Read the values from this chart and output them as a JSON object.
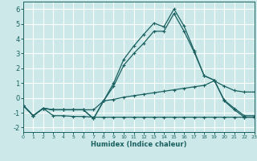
{
  "xlabel": "Humidex (Indice chaleur)",
  "xlim": [
    0,
    23
  ],
  "ylim": [
    -2.3,
    6.5
  ],
  "yticks": [
    -2,
    -1,
    0,
    1,
    2,
    3,
    4,
    5,
    6
  ],
  "xticks": [
    0,
    1,
    2,
    3,
    4,
    5,
    6,
    7,
    8,
    9,
    10,
    11,
    12,
    13,
    14,
    15,
    16,
    17,
    18,
    19,
    20,
    21,
    22,
    23
  ],
  "bg_color": "#cce8e8",
  "grid_color": "#ffffff",
  "line_color": "#1a6060",
  "line1_y": [
    -0.5,
    -1.2,
    -0.7,
    -0.8,
    -0.8,
    -0.8,
    -0.8,
    -1.4,
    -0.2,
    1.0,
    2.6,
    3.5,
    4.3,
    5.05,
    4.8,
    6.0,
    4.85,
    3.2,
    1.5,
    1.2,
    -0.2,
    -0.8,
    -1.3,
    -1.3
  ],
  "line2_y": [
    -0.5,
    -1.2,
    -0.7,
    -0.8,
    -0.8,
    -0.8,
    -0.8,
    -1.4,
    -0.2,
    0.8,
    2.2,
    3.0,
    3.7,
    4.5,
    4.5,
    5.7,
    4.5,
    3.1,
    1.5,
    1.2,
    -0.15,
    -0.7,
    -1.2,
    -1.2
  ],
  "line3_y": [
    -0.5,
    -1.2,
    -0.7,
    -0.8,
    -0.8,
    -0.8,
    -0.8,
    -0.8,
    -0.2,
    -0.1,
    0.05,
    0.15,
    0.25,
    0.35,
    0.45,
    0.55,
    0.65,
    0.75,
    0.85,
    1.15,
    0.8,
    0.5,
    0.4,
    0.4
  ],
  "line4_y": [
    -0.5,
    -1.2,
    -0.7,
    -1.2,
    -1.2,
    -1.25,
    -1.25,
    -1.3,
    -1.3,
    -1.3,
    -1.3,
    -1.3,
    -1.3,
    -1.3,
    -1.3,
    -1.3,
    -1.3,
    -1.3,
    -1.3,
    -1.3,
    -1.3,
    -1.3,
    -1.3,
    -1.3
  ]
}
